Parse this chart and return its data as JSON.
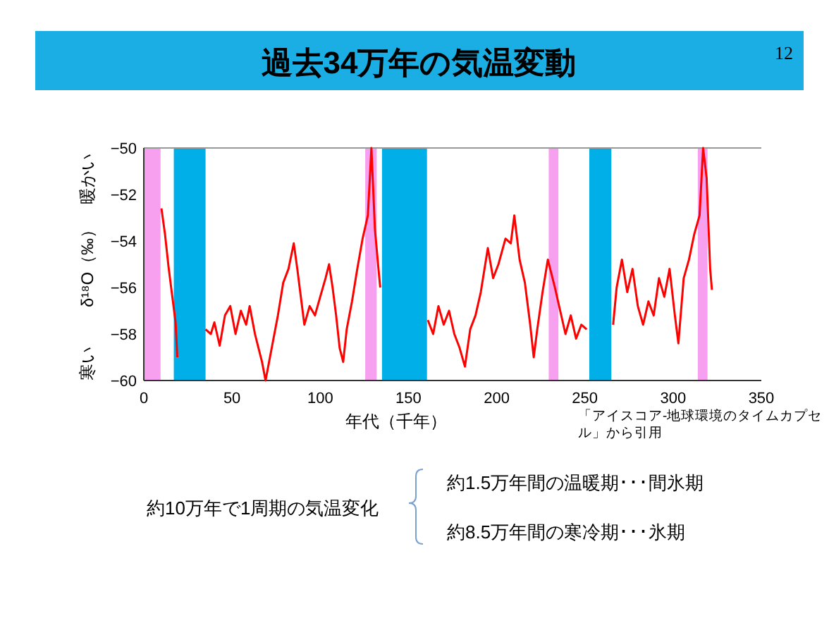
{
  "chart_data": {
    "type": "line",
    "title": "過去34万年の気温変動",
    "xlabel": "年代（千年）",
    "ylabel": "δ¹⁸O（‰）",
    "series": [
      {
        "color": "#ff0000",
        "x": [
          10,
          12,
          14,
          16,
          18,
          19
        ],
        "values": [
          -52.6,
          -53.7,
          -55.1,
          -56.3,
          -57.5,
          -59
        ]
      },
      {
        "color": "#ff0000",
        "x": [
          35,
          38,
          40,
          43,
          46,
          49,
          52,
          55,
          58,
          60,
          63,
          65,
          67,
          69,
          71,
          73,
          76,
          79,
          82,
          85,
          87,
          89,
          91,
          94,
          97,
          100,
          103,
          105,
          107,
          109,
          111,
          113,
          115,
          118,
          121,
          124,
          127,
          129,
          131,
          133,
          134
        ],
        "values": [
          -57.8,
          -58,
          -57.5,
          -58.5,
          -57.2,
          -56.8,
          -58,
          -57,
          -57.6,
          -56.8,
          -58,
          -58.6,
          -59.2,
          -60,
          -59.2,
          -58.4,
          -57.2,
          -55.8,
          -55.2,
          -54.1,
          -55.2,
          -56.4,
          -57.6,
          -56.8,
          -57.2,
          -56.4,
          -55.6,
          -55,
          -56,
          -57.2,
          -58.6,
          -59.2,
          -57.8,
          -56.6,
          -55.2,
          -53.9,
          -52.9,
          -50,
          -53.5,
          -55.2,
          -56
        ]
      },
      {
        "color": "#ff0000",
        "x": [
          161,
          164,
          167,
          170,
          173,
          176,
          179,
          182,
          185,
          188,
          191,
          195,
          198,
          201,
          205,
          208,
          210,
          213,
          216,
          219,
          221,
          223,
          226,
          229,
          233,
          236,
          239,
          242,
          245,
          248,
          251
        ],
        "values": [
          -57.4,
          -58,
          -56.8,
          -57.6,
          -57,
          -58,
          -58.6,
          -59.4,
          -57.8,
          -57.2,
          -56.2,
          -54.3,
          -55.6,
          -55,
          -53.9,
          -54.1,
          -52.9,
          -54.8,
          -55.8,
          -57.6,
          -59,
          -57.8,
          -56.2,
          -54.8,
          -56,
          -57,
          -58,
          -57.2,
          -58.2,
          -57.6,
          -57.8
        ]
      },
      {
        "color": "#ff0000",
        "x": [
          266,
          268,
          271,
          274,
          277,
          280,
          283,
          286,
          289,
          292,
          295,
          298,
          301,
          303,
          306,
          309,
          312,
          315,
          317,
          319,
          321,
          322
        ],
        "values": [
          -57.6,
          -56,
          -54.8,
          -56.2,
          -55.2,
          -56.8,
          -57.6,
          -56.6,
          -57.2,
          -55.6,
          -56.4,
          -55.2,
          -57.2,
          -58.4,
          -55.6,
          -54.8,
          -53.7,
          -52.9,
          -50,
          -51.3,
          -55.2,
          -56.1
        ]
      }
    ],
    "xlim": [
      0,
      350
    ],
    "xticks": [
      0,
      50,
      100,
      150,
      200,
      250,
      300,
      350
    ],
    "ylim": [
      -60,
      -50
    ],
    "yticks": [
      -60,
      -58,
      -56,
      -54,
      -52,
      -50
    ],
    "grid": false,
    "marker": "none",
    "line_style": "solid",
    "bands": [
      {
        "axis": "x",
        "from": 0,
        "to": 9.5,
        "color": "#f7a0f0"
      },
      {
        "axis": "x",
        "from": 17,
        "to": 35,
        "color": "#00aee8"
      },
      {
        "axis": "x",
        "from": 125.5,
        "to": 132,
        "color": "#f7a0f0"
      },
      {
        "axis": "x",
        "from": 135,
        "to": 160.5,
        "color": "#00aee8"
      },
      {
        "axis": "x",
        "from": 229.5,
        "to": 235,
        "color": "#f7a0f0"
      },
      {
        "axis": "x",
        "from": 252.5,
        "to": 265,
        "color": "#00aee8"
      },
      {
        "axis": "x",
        "from": 314,
        "to": 319.5,
        "color": "#f7a0f0"
      }
    ],
    "annotations": [
      "12",
      "暖かい",
      "寒い",
      "「アイスコア-地球環境のタイムカプセル」から引用",
      "約10万年で1周期の気温変化",
      "約1.5万年間の温暖期･･･間氷期",
      "約8.5万年間の寒冷期･･･氷期"
    ]
  }
}
